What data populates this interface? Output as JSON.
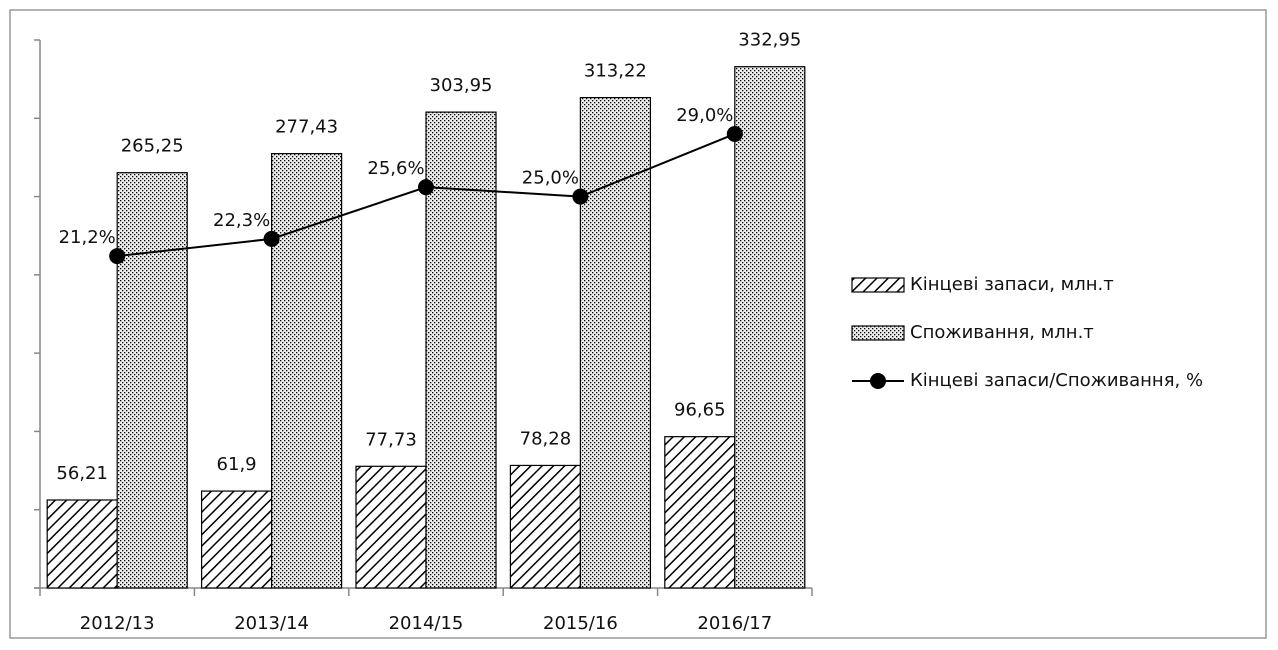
{
  "chart_data": {
    "type": "bar",
    "categories": [
      "2012/13",
      "2013/14",
      "2014/15",
      "2015/16",
      "2016/17"
    ],
    "series": [
      {
        "name": "Кінцеві запаси, млн.т",
        "type": "bar",
        "pattern": "hatch",
        "color": "#000000",
        "values": [
          56.21,
          61.9,
          77.73,
          78.28,
          96.65
        ],
        "value_labels": [
          "56,21",
          "61,9",
          "77,73",
          "78,28",
          "96,65"
        ]
      },
      {
        "name": "Споживання, млн.т",
        "type": "bar",
        "pattern": "dots",
        "color": "#000000",
        "values": [
          265.25,
          277.43,
          303.95,
          313.22,
          332.95
        ],
        "value_labels": [
          "265,25",
          "277,43",
          "303,95",
          "313,22",
          "332,95"
        ]
      },
      {
        "name": "Кінцеві запаси/Споживання, %",
        "type": "line",
        "axis": "y2",
        "color": "#000000",
        "values": [
          21.2,
          22.3,
          25.6,
          25.0,
          29.0
        ],
        "value_labels": [
          "21,2%",
          "22,3%",
          "25,6%",
          "25,0%",
          "29,0%"
        ]
      }
    ],
    "ylim": [
      0,
      350
    ],
    "yticks": [
      0,
      50,
      100,
      150,
      200,
      250,
      300,
      350
    ],
    "y2lim": [
      0,
      35
    ],
    "legend": "right"
  }
}
